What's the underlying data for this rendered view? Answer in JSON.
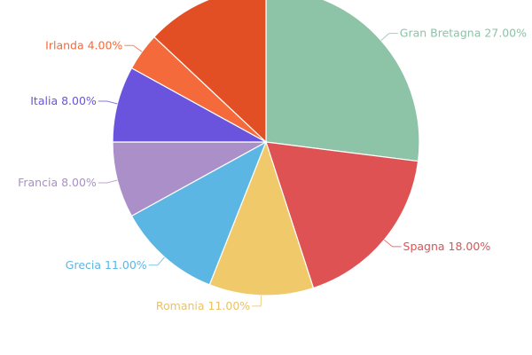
{
  "chart_data": {
    "type": "pie",
    "title": "",
    "start_angle_deg": 0,
    "direction": "clockwise",
    "slices": [
      {
        "label": "Gran Bretagna",
        "value": 27.0,
        "display": "Gran Bretagna 27.00%",
        "color": "#8dc3a7"
      },
      {
        "label": "Spagna",
        "value": 18.0,
        "display": "Spagna 18.00%",
        "color": "#de5254"
      },
      {
        "label": "Romania",
        "value": 11.0,
        "display": "Romania 11.00%",
        "color": "#f0c96a"
      },
      {
        "label": "Grecia",
        "value": 11.0,
        "display": "Grecia 11.00%",
        "color": "#5cb6e4"
      },
      {
        "label": "Francia",
        "value": 8.0,
        "display": "Francia 8.00%",
        "color": "#aa8fc9"
      },
      {
        "label": "Italia",
        "value": 8.0,
        "display": "Italia 8.00%",
        "color": "#6b54dd"
      },
      {
        "label": "Irlanda",
        "value": 4.0,
        "display": "Irlanda 4.00%",
        "color": "#f46a3a"
      },
      {
        "label": "",
        "value": 13.0,
        "display": "",
        "color": "#e34f25"
      }
    ],
    "label_colors": {
      "Gran Bretagna": "#8dc3a7",
      "Spagna": "#de5254",
      "Romania": "#e8c26a",
      "Grecia": "#5cb6e4",
      "Francia": "#aa8fc9",
      "Italia": "#6b54dd",
      "Irlanda": "#f46a3a"
    },
    "legend": "none",
    "grid": false
  }
}
